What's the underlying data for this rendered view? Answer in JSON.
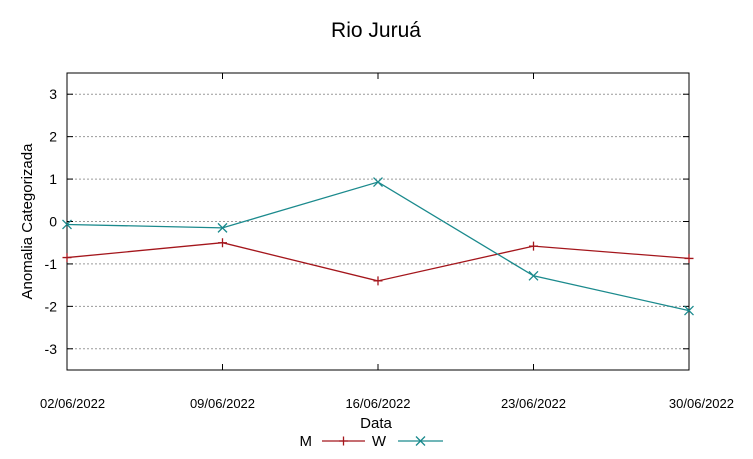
{
  "chart_data": {
    "type": "line",
    "title": "Rio Juruá",
    "xlabel": "Data",
    "ylabel": "Anomalia Categorizada",
    "categories": [
      "02/06/2022",
      "09/06/2022",
      "16/06/2022",
      "23/06/2022",
      "30/06/2022"
    ],
    "ylim": [
      -3.5,
      3.5
    ],
    "yticks": [
      3,
      2,
      1,
      0,
      -1,
      -2,
      -3
    ],
    "grid": true,
    "legend_position": "bottom",
    "series": [
      {
        "name": "M",
        "color": "#a4161c",
        "marker": "plus",
        "values": [
          -0.85,
          -0.5,
          -1.4,
          -0.58,
          -0.87
        ]
      },
      {
        "name": "W",
        "color": "#1b8a8d",
        "marker": "cross",
        "values": [
          -0.07,
          -0.15,
          0.93,
          -1.28,
          -2.1
        ]
      }
    ]
  }
}
